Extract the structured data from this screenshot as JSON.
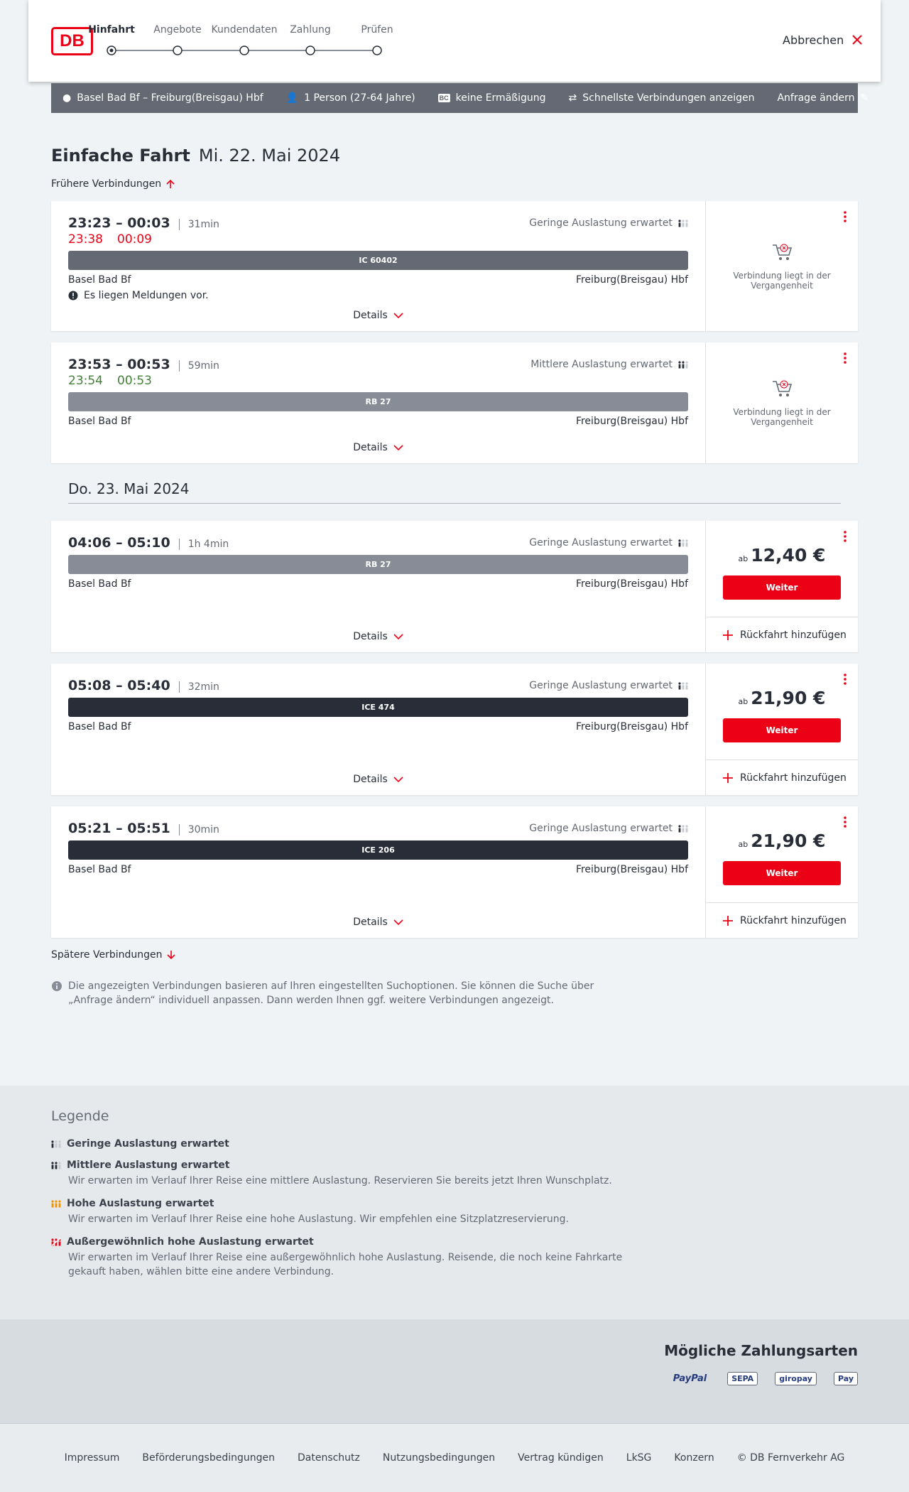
{
  "header": {
    "logo": "DB",
    "steps": [
      "Hinfahrt",
      "Angebote",
      "Kundendaten",
      "Zahlung",
      "Prüfen"
    ],
    "cancel": "Abbrechen"
  },
  "search": {
    "route": "Basel Bad Bf – Freiburg(Breisgau) Hbf",
    "persons": "1 Person (27-64 Jahre)",
    "bc": "BC",
    "discount": "keine Ermäßigung",
    "fastest": "Schnellste Verbindungen anzeigen",
    "change": "Anfrage ändern"
  },
  "title": "Einfache Fahrt",
  "earlier": "Frühere Verbindungen",
  "days": [
    {
      "date": "Mi. 22. Mai 2024",
      "connections": [
        {
          "time": "23:23 – 00:03",
          "duration": "31min",
          "actual": [
            "23:38",
            "00:09"
          ],
          "actual_color": "#ec0016",
          "load": "Geringe Auslastung erwartet",
          "train": "IC 60402",
          "train_color": "#646973",
          "from": "Basel Bad Bf",
          "to": "Freiburg(Breisgau) Hbf",
          "notice": "Es liegen Meldungen vor.",
          "details": "Details",
          "past": "Verbindung liegt in der Vergangenheit"
        },
        {
          "time": "23:53 – 00:53",
          "duration": "59min",
          "actual": [
            "23:54",
            "00:53"
          ],
          "actual_color": "#408335",
          "load": "Mittlere Auslastung erwartet",
          "train": "RB 27",
          "train_color": "#878c96",
          "from": "Basel Bad Bf",
          "to": "Freiburg(Breisgau) Hbf",
          "details": "Details",
          "past": "Verbindung liegt in der Vergangenheit"
        }
      ]
    },
    {
      "date": "Do. 23. Mai 2024",
      "connections": [
        {
          "time": "04:06 – 05:10",
          "duration": "1h 4min",
          "load": "Geringe Auslastung erwartet",
          "train": "RB 27",
          "train_color": "#878c96",
          "from": "Basel Bad Bf",
          "to": "Freiburg(Breisgau) Hbf",
          "details": "Details",
          "price_prefix": "ab",
          "price": "12,40 €",
          "button": "Weiter",
          "return": "Rückfahrt hinzufügen"
        },
        {
          "time": "05:08 – 05:40",
          "duration": "32min",
          "load": "Geringe Auslastung erwartet",
          "train": "ICE 474",
          "train_color": "#282d37",
          "from": "Basel Bad Bf",
          "to": "Freiburg(Breisgau) Hbf",
          "details": "Details",
          "price_prefix": "ab",
          "price": "21,90 €",
          "button": "Weiter",
          "return": "Rückfahrt hinzufügen"
        },
        {
          "time": "05:21 – 05:51",
          "duration": "30min",
          "load": "Geringe Auslastung erwartet",
          "train": "ICE 206",
          "train_color": "#282d37",
          "from": "Basel Bad Bf",
          "to": "Freiburg(Breisgau) Hbf",
          "details": "Details",
          "price_prefix": "ab",
          "price": "21,90 €",
          "button": "Weiter",
          "return": "Rückfahrt hinzufügen"
        }
      ]
    }
  ],
  "later": "Spätere Verbindungen",
  "note": "Die angezeigten Verbindungen basieren auf Ihren eingestellten Suchoptionen. Sie können die Suche über „Anfrage ändern“ individuell anpassen. Dann werden Ihnen ggf. weitere Verbindungen angezeigt.",
  "legend": {
    "title": "Legende",
    "items": [
      {
        "title": "Geringe Auslastung erwartet"
      },
      {
        "title": "Mittlere Auslastung erwartet",
        "text": "Wir erwarten im Verlauf Ihrer Reise eine mittlere Auslastung. Reservieren Sie bereits jetzt Ihren Wunschplatz."
      },
      {
        "title": "Hohe Auslastung erwartet",
        "text": "Wir erwarten im Verlauf Ihrer Reise eine hohe Auslastung. Wir empfehlen eine Sitzplatzreservierung."
      },
      {
        "title": "Außergewöhnlich hohe Auslastung erwartet",
        "text": "Wir erwarten im Verlauf Ihrer Reise eine außergewöhnlich hohe Auslastung. Reisende, die noch keine Fahrkarte gekauft haben, wählen bitte eine andere Verbindung."
      }
    ]
  },
  "payment": {
    "title": "Mögliche Zahlungsarten",
    "methods": [
      "PayPal",
      "SEPA",
      "giropay",
      "Pay"
    ]
  },
  "footer": [
    "Impressum",
    "Beförderungsbedingungen",
    "Datenschutz",
    "Nutzungsbedingungen",
    "Vertrag kündigen",
    "LkSG",
    "Konzern",
    "© DB Fernverkehr AG"
  ]
}
